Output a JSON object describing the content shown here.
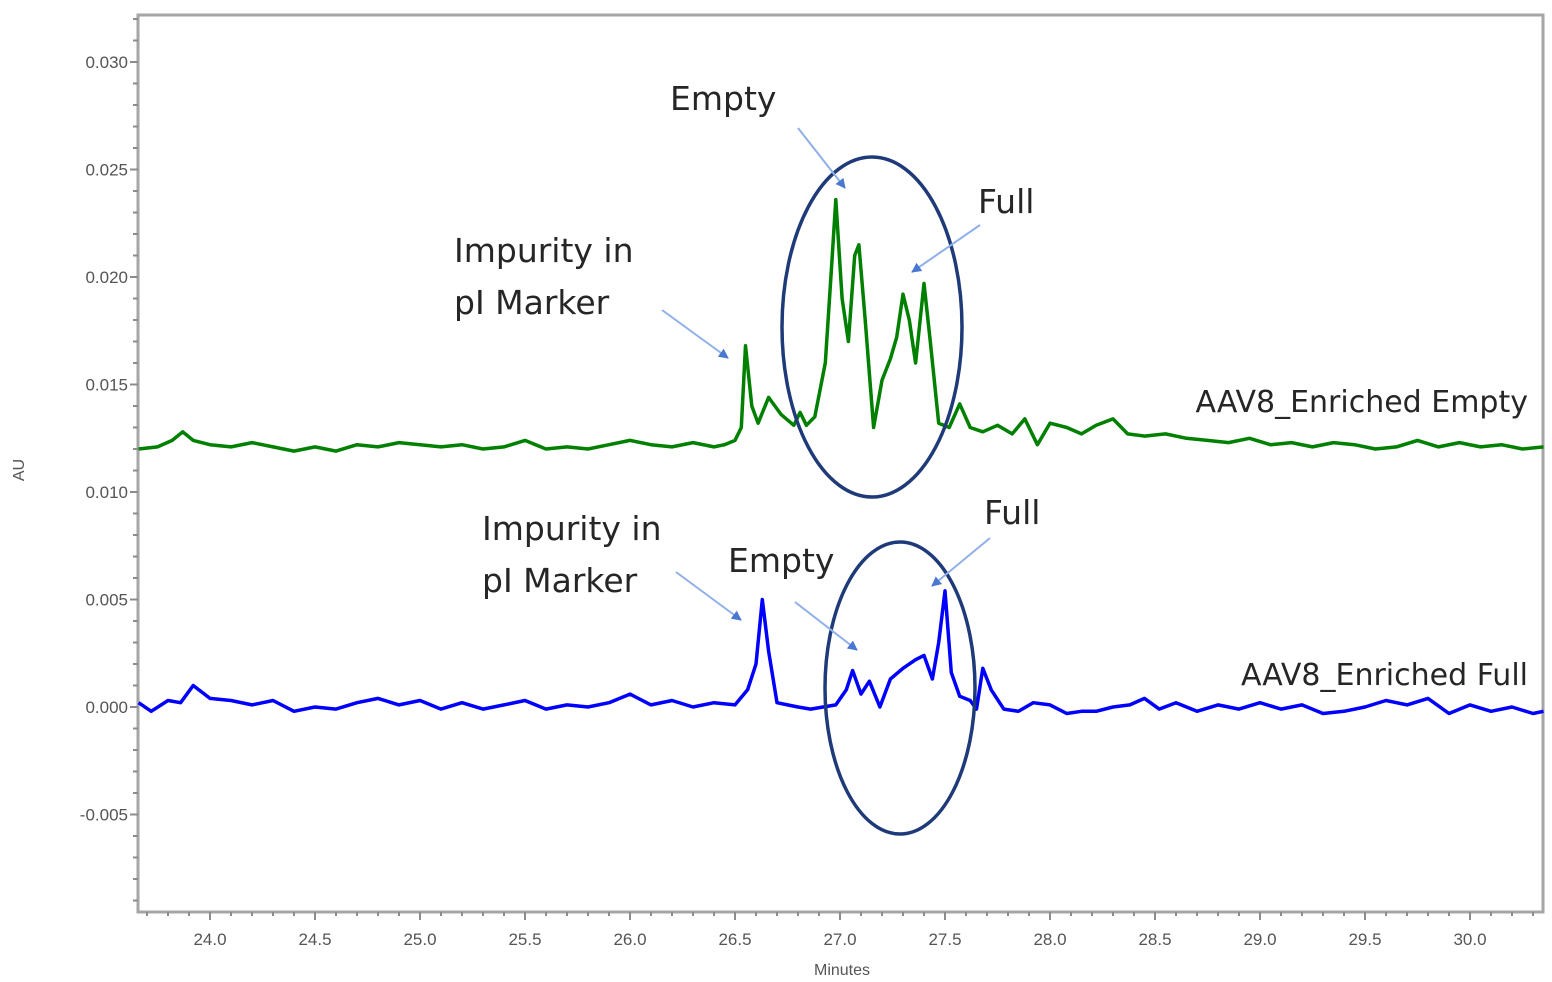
{
  "chart_data": {
    "type": "line",
    "title": "",
    "xlabel": "Minutes",
    "ylabel": "AU",
    "xlim": [
      23.66,
      30.35
    ],
    "ylim": [
      -0.0095,
      0.0325
    ],
    "grid": false,
    "legend_position": "inline labels at right of each trace",
    "x_ticks": [
      "24.0",
      "24.5",
      "25.0",
      "25.5",
      "26.0",
      "26.5",
      "27.0",
      "27.5",
      "28.0",
      "28.5",
      "29.0",
      "29.5",
      "30.0"
    ],
    "x_tick_values": [
      24.0,
      24.5,
      25.0,
      25.5,
      26.0,
      26.5,
      27.0,
      27.5,
      28.0,
      28.5,
      29.0,
      29.5,
      30.0
    ],
    "y_ticks": [
      "0.030",
      "0.025",
      "0.020",
      "0.015",
      "0.010",
      "0.005",
      "0.000",
      "-0.005"
    ],
    "y_tick_values": [
      0.03,
      0.025,
      0.02,
      0.015,
      0.01,
      0.005,
      0.0,
      -0.005
    ],
    "series": [
      {
        "name": "AAV8_Enriched Empty",
        "color": "#008000",
        "x": [
          23.66,
          23.75,
          23.82,
          23.87,
          23.92,
          24.0,
          24.1,
          24.2,
          24.3,
          24.4,
          24.5,
          24.6,
          24.7,
          24.8,
          24.9,
          25.0,
          25.1,
          25.2,
          25.3,
          25.4,
          25.5,
          25.6,
          25.7,
          25.8,
          25.9,
          26.0,
          26.1,
          26.2,
          26.3,
          26.4,
          26.45,
          26.5,
          26.53,
          26.55,
          26.58,
          26.61,
          26.66,
          26.72,
          26.78,
          26.81,
          26.84,
          26.88,
          26.93,
          26.96,
          26.98,
          27.01,
          27.04,
          27.07,
          27.09,
          27.12,
          27.16,
          27.2,
          27.24,
          27.27,
          27.3,
          27.33,
          27.36,
          27.4,
          27.43,
          27.47,
          27.52,
          27.57,
          27.62,
          27.68,
          27.75,
          27.82,
          27.88,
          27.94,
          28.0,
          28.08,
          28.15,
          28.22,
          28.3,
          28.37,
          28.45,
          28.55,
          28.65,
          28.75,
          28.85,
          28.95,
          29.05,
          29.15,
          29.25,
          29.35,
          29.45,
          29.55,
          29.65,
          29.75,
          29.85,
          29.95,
          30.05,
          30.15,
          30.25,
          30.35
        ],
        "y": [
          0.012,
          0.0121,
          0.0124,
          0.0128,
          0.0124,
          0.0122,
          0.0121,
          0.0123,
          0.0121,
          0.0119,
          0.0121,
          0.0119,
          0.0122,
          0.0121,
          0.0123,
          0.0122,
          0.0121,
          0.0122,
          0.012,
          0.0121,
          0.0124,
          0.012,
          0.0121,
          0.012,
          0.0122,
          0.0124,
          0.0122,
          0.0121,
          0.0123,
          0.0121,
          0.0122,
          0.0124,
          0.013,
          0.0168,
          0.014,
          0.0132,
          0.0144,
          0.0136,
          0.0131,
          0.0137,
          0.0131,
          0.0135,
          0.016,
          0.0205,
          0.0236,
          0.019,
          0.017,
          0.021,
          0.0215,
          0.018,
          0.013,
          0.0152,
          0.0162,
          0.0172,
          0.0192,
          0.018,
          0.016,
          0.0197,
          0.017,
          0.0132,
          0.013,
          0.0141,
          0.013,
          0.0128,
          0.0131,
          0.0127,
          0.0134,
          0.0122,
          0.0132,
          0.013,
          0.0127,
          0.0131,
          0.0134,
          0.0127,
          0.0126,
          0.0127,
          0.0125,
          0.0124,
          0.0123,
          0.0125,
          0.0122,
          0.0123,
          0.0121,
          0.0123,
          0.0122,
          0.012,
          0.0121,
          0.0124,
          0.0121,
          0.0123,
          0.0121,
          0.0122,
          0.012,
          0.0121
        ]
      },
      {
        "name": "AAV8_Enriched Full",
        "color": "#0000ff",
        "x": [
          23.66,
          23.72,
          23.8,
          23.86,
          23.92,
          24.0,
          24.1,
          24.2,
          24.3,
          24.4,
          24.5,
          24.6,
          24.7,
          24.8,
          24.9,
          25.0,
          25.1,
          25.2,
          25.3,
          25.4,
          25.5,
          25.6,
          25.7,
          25.8,
          25.9,
          26.0,
          26.1,
          26.2,
          26.3,
          26.4,
          26.5,
          26.56,
          26.6,
          26.63,
          26.66,
          26.7,
          26.75,
          26.8,
          26.86,
          26.92,
          26.98,
          27.03,
          27.06,
          27.1,
          27.14,
          27.19,
          27.24,
          27.3,
          27.36,
          27.4,
          27.44,
          27.47,
          27.5,
          27.53,
          27.57,
          27.62,
          27.65,
          27.68,
          27.72,
          27.78,
          27.85,
          27.92,
          28.0,
          28.08,
          28.15,
          28.22,
          28.3,
          28.38,
          28.45,
          28.52,
          28.6,
          28.7,
          28.8,
          28.9,
          29.0,
          29.1,
          29.2,
          29.3,
          29.4,
          29.5,
          29.6,
          29.7,
          29.8,
          29.9,
          30.0,
          30.1,
          30.2,
          30.3,
          30.35
        ],
        "y": [
          0.0002,
          -0.0002,
          0.0003,
          0.0002,
          0.001,
          0.0004,
          0.0003,
          0.0001,
          0.0003,
          -0.0002,
          0.0,
          -0.0001,
          0.0002,
          0.0004,
          0.0001,
          0.0003,
          -0.0001,
          0.0002,
          -0.0001,
          0.0001,
          0.0003,
          -0.0001,
          0.0001,
          0.0,
          0.0002,
          0.0006,
          0.0001,
          0.0003,
          0.0,
          0.0002,
          0.0001,
          0.0008,
          0.002,
          0.005,
          0.0026,
          0.0002,
          0.0001,
          0.0,
          -0.0001,
          0.0,
          0.0001,
          0.0008,
          0.0017,
          0.0006,
          0.0012,
          0.0,
          0.0013,
          0.0018,
          0.0022,
          0.0024,
          0.0013,
          0.003,
          0.0054,
          0.0016,
          0.0005,
          0.0003,
          -0.0001,
          0.0018,
          0.0008,
          -0.0001,
          -0.0002,
          0.0002,
          0.0001,
          -0.0003,
          -0.0002,
          -0.0002,
          0.0,
          0.0001,
          0.0004,
          -0.0001,
          0.0002,
          -0.0002,
          0.0001,
          -0.0001,
          0.0002,
          -0.0001,
          0.0001,
          -0.0003,
          -0.0002,
          0.0,
          0.0003,
          0.0001,
          0.0004,
          -0.0003,
          0.0001,
          -0.0002,
          0.0,
          -0.0003,
          -0.0002
        ]
      }
    ],
    "annotations": [
      {
        "text": "Empty",
        "series": "AAV8_Enriched Empty",
        "target_x": 27.0,
        "target_y": 0.0239
      },
      {
        "text": "Full",
        "series": "AAV8_Enriched Empty",
        "target_x": 27.31,
        "target_y": 0.0202
      },
      {
        "text": "Impurity in pI Marker",
        "series": "AAV8_Enriched Empty",
        "target_x": 26.55,
        "target_y": 0.0161
      },
      {
        "text": "Empty",
        "series": "AAV8_Enriched Full",
        "target_x": 27.07,
        "target_y": 0.0027
      },
      {
        "text": "Full",
        "series": "AAV8_Enriched Full",
        "target_x": 27.48,
        "target_y": 0.0058
      },
      {
        "text": "Impurity in pI Marker",
        "series": "AAV8_Enriched Full",
        "target_x": 26.6,
        "target_y": 0.004
      }
    ]
  },
  "labels": {
    "y_axis_title": "AU",
    "x_axis_title": "Minutes",
    "trace_empty": "AAV8_Enriched Empty",
    "trace_full": "AAV8_Enriched Full",
    "upper": {
      "empty": "Empty",
      "full": "Full",
      "impurity_line1": "Impurity in",
      "impurity_line2": "pI Marker"
    },
    "lower": {
      "empty": "Empty",
      "full": "Full",
      "impurity_line1": "Impurity in",
      "impurity_line2": "pI Marker"
    }
  },
  "colors": {
    "empty_trace": "#008000",
    "full_trace": "#0000ff",
    "ellipse": "#1f3a78",
    "arrow": "#4a78d0",
    "axis": "#a6a6a6"
  }
}
